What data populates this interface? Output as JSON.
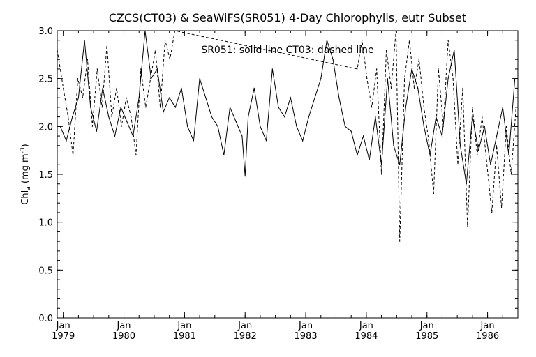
{
  "chart_data": {
    "type": "line",
    "title": "CZCS(CT03) & SeaWiFS(SR051) 4-Day Chlorophylls, eutr Subset",
    "annotation": "SR051: solid line   CT03: dashed line",
    "ylabel_main": "Chl",
    "ylabel_sub": "a",
    "ylabel_units": "(mg m",
    "ylabel_units_sup": "-3",
    "ylabel_units_close": ")",
    "ylim": [
      0.0,
      3.0
    ],
    "y_ticks": [
      "0.0",
      "0.5",
      "1.0",
      "1.5",
      "2.0",
      "2.5",
      "3.0"
    ],
    "x_ticks": [
      {
        "month": "Jan",
        "year": "1979"
      },
      {
        "month": "Jan",
        "year": "1980"
      },
      {
        "month": "Jan",
        "year": "1981"
      },
      {
        "month": "Jan",
        "year": "1982"
      },
      {
        "month": "Jan",
        "year": "1983"
      },
      {
        "month": "Jan",
        "year": "1984"
      },
      {
        "month": "Jan",
        "year": "1985"
      },
      {
        "month": "Jan",
        "year": "1986"
      }
    ],
    "xlim_years": [
      1978.9,
      1986.5
    ],
    "series": [
      {
        "name": "SR051",
        "style": "solid",
        "x": [
          1978.95,
          1979.05,
          1979.15,
          1979.25,
          1979.35,
          1979.45,
          1979.55,
          1979.65,
          1979.75,
          1979.85,
          1979.95,
          1980.05,
          1980.15,
          1980.25,
          1980.35,
          1980.45,
          1980.55,
          1980.65,
          1980.75,
          1980.85,
          1980.95,
          1981.05,
          1981.15,
          1981.25,
          1981.35,
          1981.45,
          1981.55,
          1981.65,
          1981.75,
          1981.85,
          1981.95,
          1982.0,
          1982.05,
          1982.15,
          1982.25,
          1982.35,
          1982.45,
          1982.55,
          1982.65,
          1982.75,
          1982.85,
          1982.95,
          1983.05,
          1983.15,
          1983.25,
          1983.35,
          1983.45,
          1983.55,
          1983.65,
          1983.75,
          1983.85,
          1983.95,
          1984.05,
          1984.15,
          1984.25,
          1984.35,
          1984.45,
          1984.55,
          1984.65,
          1984.75,
          1984.85,
          1984.95,
          1985.05,
          1985.15,
          1985.25,
          1985.35,
          1985.45,
          1985.55,
          1985.65,
          1985.75,
          1985.85,
          1985.95,
          1986.05,
          1986.15,
          1986.25,
          1986.35,
          1986.45
        ],
        "y": [
          2.0,
          1.85,
          2.1,
          2.3,
          2.9,
          2.2,
          1.95,
          2.4,
          2.1,
          1.9,
          2.2,
          2.05,
          1.9,
          2.3,
          3.0,
          2.5,
          2.6,
          2.15,
          2.3,
          2.2,
          2.4,
          2.0,
          1.85,
          2.5,
          2.3,
          2.1,
          2.0,
          1.7,
          2.2,
          2.05,
          1.9,
          1.48,
          2.1,
          2.4,
          2.0,
          1.85,
          2.6,
          2.2,
          2.1,
          2.3,
          2.0,
          1.85,
          2.1,
          2.3,
          2.5,
          2.9,
          2.7,
          2.3,
          2.0,
          1.95,
          1.7,
          1.9,
          1.65,
          2.1,
          1.6,
          2.5,
          1.8,
          1.6,
          2.2,
          2.6,
          2.4,
          2.0,
          1.7,
          2.1,
          1.9,
          2.5,
          2.8,
          1.8,
          1.4,
          2.1,
          1.75,
          2.0,
          1.6,
          1.9,
          2.2,
          1.7,
          2.5
        ]
      },
      {
        "name": "CT03",
        "style": "dashed",
        "x": [
          1978.9,
          1979.0,
          1979.08,
          1979.16,
          1979.24,
          1979.32,
          1979.4,
          1979.48,
          1979.56,
          1979.64,
          1979.72,
          1979.8,
          1979.88,
          1979.96,
          1980.04,
          1980.12,
          1980.2,
          1980.28,
          1980.36,
          1980.44,
          1980.52,
          1980.6,
          1980.68,
          1980.76,
          1980.84,
          1983.85,
          1983.93,
          1984.01,
          1984.09,
          1984.17,
          1984.25,
          1984.33,
          1984.41,
          1984.49,
          1984.55,
          1984.63,
          1984.71,
          1984.79,
          1984.87,
          1984.95,
          1985.03,
          1985.11,
          1985.19,
          1985.27,
          1985.35,
          1985.43,
          1985.51,
          1985.59,
          1985.67,
          1985.75,
          1985.83,
          1985.91,
          1985.99,
          1986.07,
          1986.15,
          1986.23,
          1986.31,
          1986.39,
          1986.47
        ],
        "y": [
          2.8,
          2.4,
          2.1,
          1.7,
          2.5,
          2.3,
          2.7,
          2.0,
          2.6,
          2.2,
          2.85,
          2.1,
          2.4,
          2.0,
          2.3,
          2.1,
          1.7,
          2.6,
          2.2,
          2.5,
          2.8,
          2.2,
          2.9,
          2.7,
          3.0,
          2.6,
          2.9,
          2.5,
          2.2,
          2.6,
          1.5,
          2.8,
          2.4,
          3.0,
          0.8,
          2.5,
          2.9,
          2.4,
          2.7,
          2.2,
          1.85,
          1.3,
          2.6,
          2.0,
          2.9,
          2.5,
          1.6,
          2.4,
          0.95,
          2.2,
          1.7,
          2.1,
          1.6,
          1.1,
          1.8,
          1.15,
          2.0,
          1.5,
          2.2
        ]
      }
    ],
    "grid": false,
    "legend": "none"
  }
}
